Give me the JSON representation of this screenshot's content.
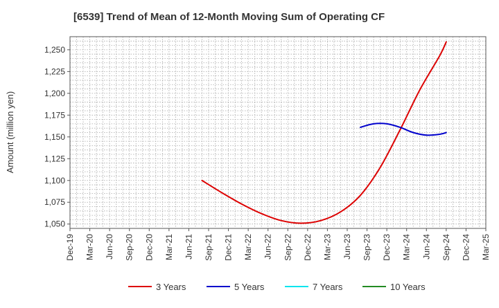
{
  "chart_data": {
    "type": "line",
    "title": "[6539]  Trend of Mean of 12-Month Moving Sum of Operating CF",
    "ylabel": "Amount (million yen)",
    "xlabel": "",
    "ylim": [
      1045,
      1265
    ],
    "yticks": [
      1050,
      1075,
      1100,
      1125,
      1150,
      1175,
      1200,
      1225,
      1250
    ],
    "ytick_labels": [
      "1,050",
      "1,075",
      "1,100",
      "1,125",
      "1,150",
      "1,175",
      "1,200",
      "1,225",
      "1,250"
    ],
    "xlim": [
      "2019-12",
      "2025-03"
    ],
    "xticks": [
      "2019-12",
      "2020-03",
      "2020-06",
      "2020-09",
      "2020-12",
      "2021-03",
      "2021-06",
      "2021-09",
      "2021-12",
      "2022-03",
      "2022-06",
      "2022-09",
      "2022-12",
      "2023-03",
      "2023-06",
      "2023-09",
      "2023-12",
      "2024-03",
      "2024-06",
      "2024-09",
      "2024-12",
      "2025-03"
    ],
    "xtick_labels": [
      "Dec-19",
      "Mar-20",
      "Jun-20",
      "Sep-20",
      "Dec-20",
      "Mar-21",
      "Jun-21",
      "Sep-21",
      "Dec-21",
      "Mar-22",
      "Jun-22",
      "Sep-22",
      "Dec-22",
      "Mar-23",
      "Jun-23",
      "Sep-23",
      "Dec-23",
      "Mar-24",
      "Jun-24",
      "Sep-24",
      "Dec-24",
      "Mar-25"
    ],
    "grid": true,
    "legend_position": "bottom",
    "series": [
      {
        "name": "3 Years",
        "color": "#dd0000",
        "points": [
          [
            "2021-08",
            1100
          ],
          [
            "2021-11",
            1086
          ],
          [
            "2022-02",
            1073
          ],
          [
            "2022-05",
            1062
          ],
          [
            "2022-08",
            1054
          ],
          [
            "2022-11",
            1051
          ],
          [
            "2023-02",
            1054
          ],
          [
            "2023-05",
            1064
          ],
          [
            "2023-08",
            1083
          ],
          [
            "2023-11",
            1115
          ],
          [
            "2024-02",
            1158
          ],
          [
            "2024-05",
            1204
          ],
          [
            "2024-08",
            1243
          ],
          [
            "2024-09",
            1259
          ]
        ]
      },
      {
        "name": "5 Years",
        "color": "#0000cc",
        "points": [
          [
            "2023-08",
            1161
          ],
          [
            "2023-10",
            1165
          ],
          [
            "2023-12",
            1165
          ],
          [
            "2024-02",
            1161
          ],
          [
            "2024-04",
            1155
          ],
          [
            "2024-06",
            1152
          ],
          [
            "2024-08",
            1153
          ],
          [
            "2024-09",
            1155
          ]
        ]
      },
      {
        "name": "7 Years",
        "color": "#00e5ee",
        "points": []
      },
      {
        "name": "10 Years",
        "color": "#228b22",
        "points": []
      }
    ]
  }
}
